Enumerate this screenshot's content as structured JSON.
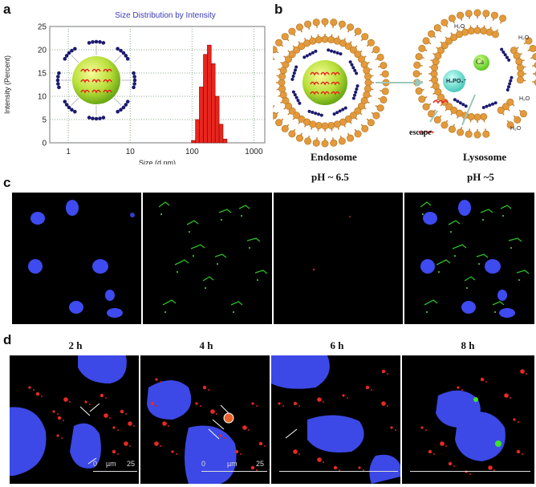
{
  "panels": {
    "a": {
      "letter": "a",
      "chart_data": {
        "type": "bar",
        "title": "Size Distribution by Intensity",
        "xlabel": "Size (d.nm)",
        "ylabel": "Intensity (Percent)",
        "xscale": "log",
        "xlim": [
          0.5,
          1500
        ],
        "ylim": [
          0,
          25
        ],
        "xticks": [
          "1",
          "10",
          "100",
          "1000"
        ],
        "yticks": [
          "0",
          "5",
          "10",
          "15",
          "20",
          "25"
        ],
        "grid": true,
        "color": "#e8261e",
        "bins": [
          {
            "x": 105,
            "y": 0.5
          },
          {
            "x": 122,
            "y": 5
          },
          {
            "x": 141,
            "y": 12
          },
          {
            "x": 164,
            "y": 19
          },
          {
            "x": 190,
            "y": 21
          },
          {
            "x": 220,
            "y": 17
          },
          {
            "x": 255,
            "y": 10
          },
          {
            "x": 295,
            "y": 4
          },
          {
            "x": 342,
            "y": 0.8
          }
        ]
      }
    },
    "b": {
      "letter": "b",
      "endosome_label": "Endosome",
      "endosome_ph": "pH ~ 6.5",
      "lysosome_label": "Lysosome",
      "lysosome_ph": "pH ~5",
      "escape_label": "escape",
      "ca_label": "Ca",
      "hpo_label": "H₂PO₄⁻",
      "water_label": "H₂O"
    },
    "c": {
      "letter": "c"
    },
    "d": {
      "letter": "d",
      "times": [
        "2 h",
        "4 h",
        "6 h",
        "8 h"
      ],
      "scale_ticks": [
        "0",
        "µm",
        "25"
      ]
    }
  }
}
